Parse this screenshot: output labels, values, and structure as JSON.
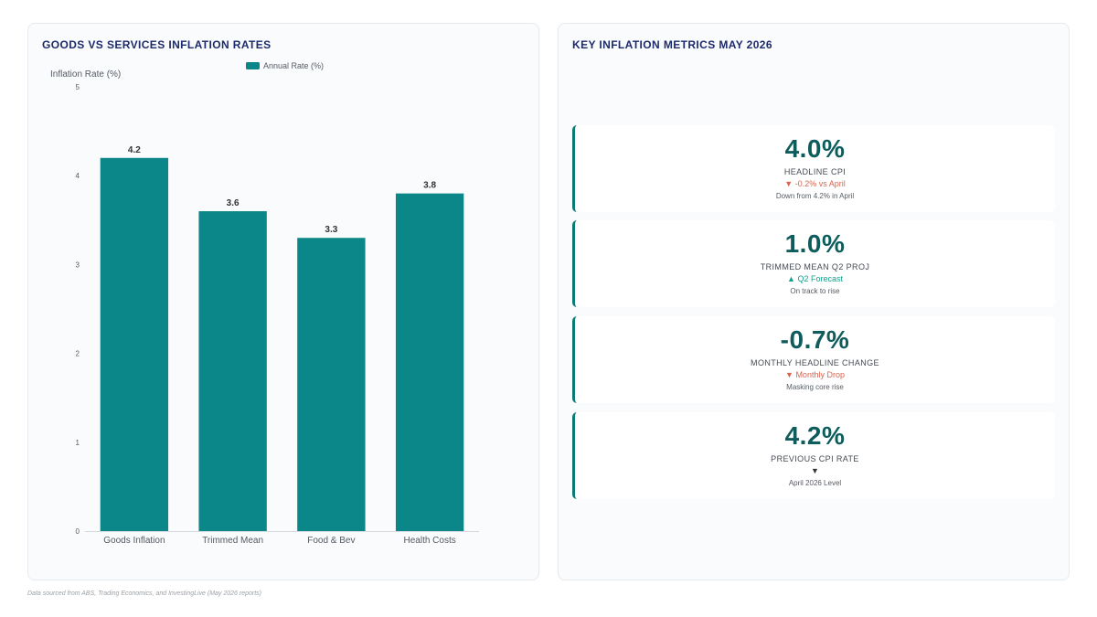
{
  "chart_panel": {
    "title": "GOODS VS SERVICES INFLATION RATES"
  },
  "chart_data": {
    "type": "bar",
    "title": "GOODS VS SERVICES INFLATION RATES",
    "categories": [
      "Goods Inflation",
      "Trimmed Mean",
      "Food & Bev",
      "Health Costs"
    ],
    "series": [
      {
        "name": "Annual Rate (%)",
        "values": [
          4.2,
          3.6,
          3.3,
          3.8
        ]
      }
    ],
    "xlabel": "",
    "ylabel": "Inflation Rate (%)",
    "ylim": [
      0,
      5
    ],
    "yticks": [
      0,
      1,
      2,
      3,
      4,
      5
    ],
    "grid": false,
    "legend": "top-center",
    "bar_color": "#0b8789",
    "data_labels": true
  },
  "metrics_panel": {
    "title": "KEY INFLATION METRICS MAY 2026",
    "cards": [
      {
        "value": "4.0%",
        "label": "HEADLINE CPI",
        "change": "▼ -0.2% vs April",
        "trend": "down",
        "note": "Down from 4.2% in April"
      },
      {
        "value": "1.0%",
        "label": "TRIMMED MEAN Q2 PROJ",
        "change": "▲ Q2 Forecast",
        "trend": "up",
        "note": "On track to rise"
      },
      {
        "value": "-0.7%",
        "label": "MONTHLY HEADLINE CHANGE",
        "change": "▼ Monthly Drop",
        "trend": "down",
        "note": "Masking core rise"
      },
      {
        "value": "4.2%",
        "label": "PREVIOUS CPI RATE",
        "change": "▼",
        "trend": "neutral",
        "note": "April 2026 Level"
      }
    ]
  },
  "footer": {
    "text": "Data sourced from ABS, Trading Economics, and InvestingLive (May 2026 reports)"
  }
}
